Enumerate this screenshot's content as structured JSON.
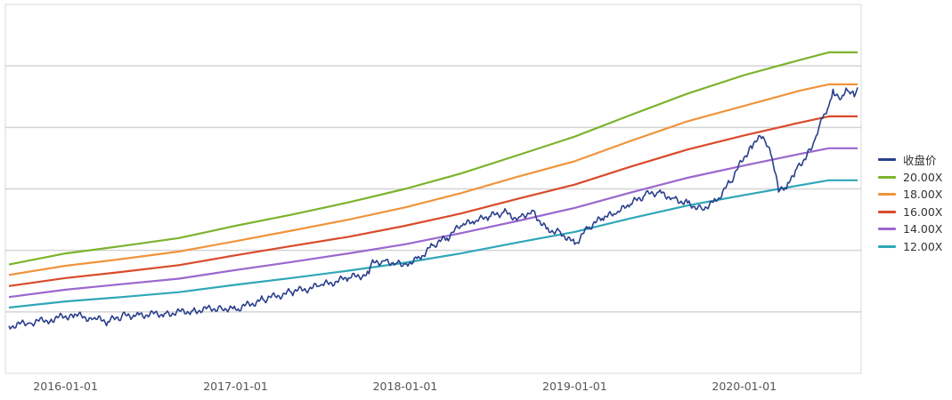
{
  "chart_data": {
    "type": "line",
    "title": "",
    "xlabel": "",
    "ylabel": "",
    "x_range": [
      "2015-09-01",
      "2020-09-01"
    ],
    "y_range": [
      0,
      6
    ],
    "y_ticks": [
      1,
      2,
      3,
      4,
      5
    ],
    "grid": "horizontal",
    "legend_position": "right",
    "x_tick_labels": [
      "2016-01-01",
      "2017-01-01",
      "2018-01-01",
      "2019-01-01",
      "2020-01-01"
    ],
    "series": [
      {
        "name": "收盘价",
        "color": "#2a3f8c",
        "points": [
          [
            "2015-09-01",
            0.77
          ],
          [
            "2015-10-15",
            0.82
          ],
          [
            "2015-12-01",
            0.88
          ],
          [
            "2016-01-15",
            0.95
          ],
          [
            "2016-03-01",
            0.89
          ],
          [
            "2016-04-01",
            0.84
          ],
          [
            "2016-05-01",
            0.93
          ],
          [
            "2016-06-01",
            0.95
          ],
          [
            "2016-08-01",
            0.97
          ],
          [
            "2016-10-01",
            1.02
          ],
          [
            "2016-12-01",
            1.07
          ],
          [
            "2017-01-01",
            1.04
          ],
          [
            "2017-03-01",
            1.2
          ],
          [
            "2017-05-01",
            1.32
          ],
          [
            "2017-07-01",
            1.42
          ],
          [
            "2017-09-01",
            1.55
          ],
          [
            "2017-10-15",
            1.62
          ],
          [
            "2017-10-20",
            1.78
          ],
          [
            "2017-11-15",
            1.83
          ],
          [
            "2017-12-15",
            1.8
          ],
          [
            "2018-01-01",
            1.78
          ],
          [
            "2018-02-01",
            1.88
          ],
          [
            "2018-03-01",
            2.08
          ],
          [
            "2018-04-01",
            2.2
          ],
          [
            "2018-05-01",
            2.4
          ],
          [
            "2018-06-01",
            2.47
          ],
          [
            "2018-07-01",
            2.55
          ],
          [
            "2018-08-01",
            2.62
          ],
          [
            "2018-09-01",
            2.52
          ],
          [
            "2018-10-01",
            2.65
          ],
          [
            "2018-11-01",
            2.35
          ],
          [
            "2018-12-01",
            2.3
          ],
          [
            "2019-01-01",
            2.1
          ],
          [
            "2019-02-01",
            2.38
          ],
          [
            "2019-03-01",
            2.52
          ],
          [
            "2019-04-01",
            2.6
          ],
          [
            "2019-05-01",
            2.75
          ],
          [
            "2019-06-01",
            2.9
          ],
          [
            "2019-07-01",
            2.95
          ],
          [
            "2019-08-01",
            2.85
          ],
          [
            "2019-09-01",
            2.77
          ],
          [
            "2019-10-01",
            2.68
          ],
          [
            "2019-11-01",
            2.8
          ],
          [
            "2019-12-01",
            3.1
          ],
          [
            "2020-01-15",
            3.7
          ],
          [
            "2020-02-10",
            3.85
          ],
          [
            "2020-03-01",
            3.5
          ],
          [
            "2020-03-15",
            2.95
          ],
          [
            "2020-04-01",
            3.0
          ],
          [
            "2020-04-20",
            3.3
          ],
          [
            "2020-05-15",
            3.55
          ],
          [
            "2020-06-01",
            3.8
          ],
          [
            "2020-06-15",
            4.15
          ],
          [
            "2020-07-01",
            4.35
          ],
          [
            "2020-07-10",
            4.62
          ],
          [
            "2020-07-25",
            4.45
          ],
          [
            "2020-08-10",
            4.6
          ],
          [
            "2020-08-25",
            4.5
          ],
          [
            "2020-09-01",
            4.65
          ]
        ]
      },
      {
        "name": "20.00X",
        "color": "#7cb32e",
        "points": [
          [
            "2015-09-01",
            1.77
          ],
          [
            "2016-01-01",
            1.95
          ],
          [
            "2016-05-01",
            2.07
          ],
          [
            "2016-09-01",
            2.2
          ],
          [
            "2017-01-01",
            2.4
          ],
          [
            "2017-05-01",
            2.58
          ],
          [
            "2017-09-01",
            2.78
          ],
          [
            "2018-01-01",
            3.0
          ],
          [
            "2018-05-01",
            3.25
          ],
          [
            "2018-09-01",
            3.55
          ],
          [
            "2019-01-01",
            3.85
          ],
          [
            "2019-05-01",
            4.2
          ],
          [
            "2019-09-01",
            4.55
          ],
          [
            "2020-01-01",
            4.85
          ],
          [
            "2020-05-01",
            5.1
          ],
          [
            "2020-07-01",
            5.22
          ],
          [
            "2020-09-01",
            5.22
          ]
        ]
      },
      {
        "name": "18.00X",
        "color": "#f0943c",
        "points": [
          [
            "2015-09-01",
            1.6
          ],
          [
            "2016-01-01",
            1.75
          ],
          [
            "2016-05-01",
            1.86
          ],
          [
            "2016-09-01",
            1.98
          ],
          [
            "2017-01-01",
            2.15
          ],
          [
            "2017-05-01",
            2.32
          ],
          [
            "2017-09-01",
            2.5
          ],
          [
            "2018-01-01",
            2.7
          ],
          [
            "2018-05-01",
            2.93
          ],
          [
            "2018-09-01",
            3.2
          ],
          [
            "2019-01-01",
            3.45
          ],
          [
            "2019-05-01",
            3.78
          ],
          [
            "2019-09-01",
            4.1
          ],
          [
            "2020-01-01",
            4.35
          ],
          [
            "2020-05-01",
            4.6
          ],
          [
            "2020-07-01",
            4.7
          ],
          [
            "2020-09-01",
            4.7
          ]
        ]
      },
      {
        "name": "16.00X",
        "color": "#d94a2b",
        "points": [
          [
            "2015-09-01",
            1.42
          ],
          [
            "2016-01-01",
            1.55
          ],
          [
            "2016-05-01",
            1.65
          ],
          [
            "2016-09-01",
            1.76
          ],
          [
            "2017-01-01",
            1.92
          ],
          [
            "2017-05-01",
            2.07
          ],
          [
            "2017-09-01",
            2.22
          ],
          [
            "2018-01-01",
            2.4
          ],
          [
            "2018-05-01",
            2.6
          ],
          [
            "2018-09-01",
            2.84
          ],
          [
            "2019-01-01",
            3.07
          ],
          [
            "2019-05-01",
            3.36
          ],
          [
            "2019-09-01",
            3.64
          ],
          [
            "2020-01-01",
            3.87
          ],
          [
            "2020-05-01",
            4.08
          ],
          [
            "2020-07-01",
            4.18
          ],
          [
            "2020-09-01",
            4.18
          ]
        ]
      },
      {
        "name": "14.00X",
        "color": "#9b67cf",
        "points": [
          [
            "2015-09-01",
            1.24
          ],
          [
            "2016-01-01",
            1.36
          ],
          [
            "2016-05-01",
            1.45
          ],
          [
            "2016-09-01",
            1.54
          ],
          [
            "2017-01-01",
            1.68
          ],
          [
            "2017-05-01",
            1.81
          ],
          [
            "2017-09-01",
            1.95
          ],
          [
            "2018-01-01",
            2.1
          ],
          [
            "2018-05-01",
            2.28
          ],
          [
            "2018-09-01",
            2.48
          ],
          [
            "2019-01-01",
            2.69
          ],
          [
            "2019-05-01",
            2.94
          ],
          [
            "2019-09-01",
            3.18
          ],
          [
            "2020-01-01",
            3.38
          ],
          [
            "2020-05-01",
            3.57
          ],
          [
            "2020-07-01",
            3.66
          ],
          [
            "2020-09-01",
            3.66
          ]
        ]
      },
      {
        "name": "12.00X",
        "color": "#2fa7b8",
        "points": [
          [
            "2015-09-01",
            1.07
          ],
          [
            "2016-01-01",
            1.17
          ],
          [
            "2016-05-01",
            1.24
          ],
          [
            "2016-09-01",
            1.32
          ],
          [
            "2017-01-01",
            1.44
          ],
          [
            "2017-05-01",
            1.55
          ],
          [
            "2017-09-01",
            1.67
          ],
          [
            "2018-01-01",
            1.8
          ],
          [
            "2018-05-01",
            1.95
          ],
          [
            "2018-09-01",
            2.13
          ],
          [
            "2019-01-01",
            2.3
          ],
          [
            "2019-05-01",
            2.52
          ],
          [
            "2019-09-01",
            2.73
          ],
          [
            "2020-01-01",
            2.9
          ],
          [
            "2020-05-01",
            3.06
          ],
          [
            "2020-07-01",
            3.14
          ],
          [
            "2020-09-01",
            3.14
          ]
        ]
      }
    ]
  }
}
